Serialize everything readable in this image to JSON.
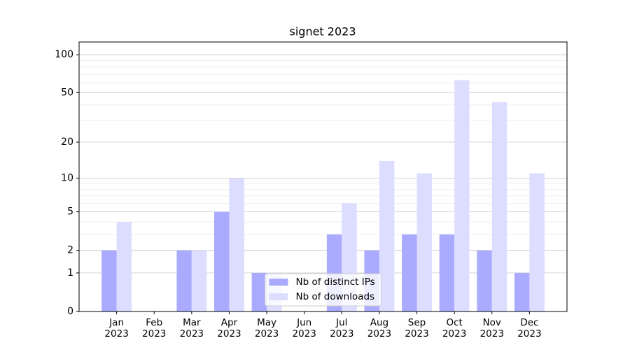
{
  "chart_data": {
    "type": "bar",
    "title": "signet 2023",
    "categories": [
      "Jan\n2023",
      "Feb\n2023",
      "Mar\n2023",
      "Apr\n2023",
      "May\n2023",
      "Jun\n2023",
      "Jul\n2023",
      "Aug\n2023",
      "Sep\n2023",
      "Oct\n2023",
      "Nov\n2023",
      "Dec\n2023"
    ],
    "series": [
      {
        "name": "Nb of distinct IPs",
        "color": "#aaaaff",
        "values": [
          2,
          0,
          2,
          5,
          1,
          0,
          3,
          2,
          3,
          3,
          2,
          1
        ]
      },
      {
        "name": "Nb of downloads",
        "color": "#ddddff",
        "values": [
          4,
          0,
          2,
          10,
          1,
          0,
          6,
          14,
          11,
          63,
          42,
          11
        ]
      }
    ],
    "yscale": "log1p",
    "ylim": [
      0,
      126
    ],
    "yticks": [
      0,
      1,
      2,
      5,
      10,
      20,
      50,
      100
    ],
    "minor_yticks": [
      3,
      4,
      6,
      7,
      8,
      9,
      30,
      40,
      60,
      70,
      80,
      90
    ],
    "grid": true,
    "legend": "lower center"
  }
}
